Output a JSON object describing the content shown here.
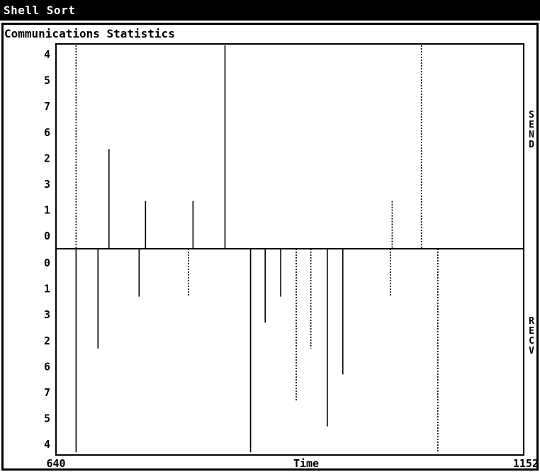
{
  "window": {
    "title": "Shell Sort"
  },
  "panel": {
    "title": "Communications Statistics"
  },
  "chart_data": {
    "type": "bar",
    "title": "",
    "xlabel": "Time",
    "xlim": [
      640,
      1152
    ],
    "x_tick_labels": [
      "640",
      "1152"
    ],
    "send": {
      "label": "SEND",
      "processor_labels": [
        "4",
        "5",
        "7",
        "6",
        "2",
        "3",
        "1",
        "0"
      ],
      "events": [
        {
          "x": 662,
          "processor": "4",
          "style": "dotted"
        },
        {
          "x": 698,
          "processor": "2",
          "style": "solid"
        },
        {
          "x": 738,
          "processor": "1",
          "style": "solid"
        },
        {
          "x": 790,
          "processor": "1",
          "style": "solid"
        },
        {
          "x": 825,
          "processor": "4",
          "style": "solid"
        },
        {
          "x": 1008,
          "processor": "1",
          "style": "dotted"
        },
        {
          "x": 1040,
          "processor": "4",
          "style": "dotted"
        }
      ]
    },
    "recv": {
      "label": "RECV",
      "processor_labels": [
        "0",
        "1",
        "3",
        "2",
        "6",
        "7",
        "5",
        "4"
      ],
      "events": [
        {
          "x": 662,
          "processor": "4",
          "style": "solid"
        },
        {
          "x": 686,
          "processor": "2",
          "style": "solid"
        },
        {
          "x": 731,
          "processor": "1",
          "style": "solid"
        },
        {
          "x": 785,
          "processor": "1",
          "style": "dotted"
        },
        {
          "x": 853,
          "processor": "4",
          "style": "solid"
        },
        {
          "x": 869,
          "processor": "3",
          "style": "solid"
        },
        {
          "x": 886,
          "processor": "1",
          "style": "solid"
        },
        {
          "x": 903,
          "processor": "7",
          "style": "dotted"
        },
        {
          "x": 919,
          "processor": "2",
          "style": "dotted"
        },
        {
          "x": 937,
          "processor": "5",
          "style": "solid"
        },
        {
          "x": 954,
          "processor": "6",
          "style": "solid"
        },
        {
          "x": 1006,
          "processor": "1",
          "style": "dotted"
        },
        {
          "x": 1058,
          "processor": "4",
          "style": "dotted"
        }
      ]
    }
  }
}
